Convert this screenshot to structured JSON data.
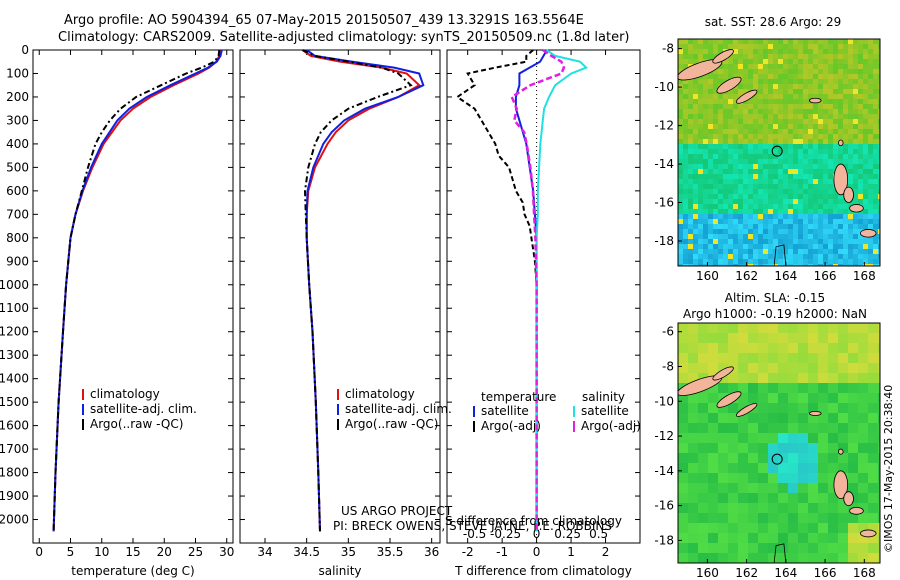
{
  "header": {
    "line1": "Argo profile: AO 5904394_65 07-May-2015 20150507_439 13.3291S 163.5564E",
    "line2": "Climatology: CARS2009. Satellite-adjusted climatology: synTS_20150509.nc (1.8d later)"
  },
  "colors": {
    "climatology": "#e01010",
    "satellite": "#1020e0",
    "argo": "#000000",
    "sal_satellite": "#20e0e0",
    "sal_argo": "#e020e0",
    "land": "#f2b49a"
  },
  "chart_data": [
    {
      "type": "line",
      "xlabel": "temperature (deg C)",
      "ylim": [
        2100,
        0
      ],
      "xlim": [
        -1,
        31
      ],
      "xticks": [
        0,
        5,
        10,
        15,
        20,
        25,
        30
      ],
      "yticks": [
        0,
        100,
        200,
        300,
        400,
        500,
        600,
        700,
        800,
        900,
        1000,
        1100,
        1200,
        1300,
        1400,
        1500,
        1600,
        1700,
        1800,
        1900,
        2000
      ],
      "legend": [
        "climatology",
        "satellite-adj. clim.",
        "Argo(..raw -QC)"
      ],
      "series": [
        {
          "name": "climatology",
          "depth": [
            0,
            25,
            50,
            75,
            100,
            150,
            200,
            250,
            300,
            400,
            500,
            600,
            700,
            800,
            1000,
            1200,
            1500,
            1800,
            2050
          ],
          "values": [
            28.9,
            28.8,
            28.3,
            27.2,
            25.5,
            21.5,
            17.8,
            15.0,
            13.0,
            10.3,
            8.5,
            7.0,
            5.8,
            5.0,
            4.3,
            3.8,
            3.1,
            2.6,
            2.3
          ]
        },
        {
          "name": "satellite-adj. clim.",
          "depth": [
            0,
            25,
            50,
            75,
            100,
            150,
            200,
            250,
            300,
            400,
            500,
            600,
            700,
            800,
            1000,
            1200,
            1500,
            1800,
            2050
          ],
          "values": [
            29.2,
            29.0,
            28.4,
            27.0,
            25.0,
            21.0,
            17.2,
            14.4,
            12.5,
            10.0,
            8.3,
            6.9,
            5.8,
            5.0,
            4.3,
            3.8,
            3.1,
            2.6,
            2.3
          ]
        },
        {
          "name": "Argo(..raw -QC)",
          "depth": [
            0,
            25,
            50,
            75,
            100,
            150,
            200,
            250,
            300,
            350,
            400,
            500,
            600,
            700,
            800,
            1000,
            1200,
            1500,
            1800,
            2050
          ],
          "values": [
            28.8,
            28.7,
            28.0,
            26.0,
            23.5,
            19.5,
            15.5,
            13.0,
            11.3,
            10.0,
            9.0,
            7.8,
            6.8,
            5.8,
            5.0,
            4.3,
            3.8,
            3.1,
            2.6,
            2.3
          ]
        }
      ]
    },
    {
      "type": "line",
      "xlabel": "salinity",
      "ylim": [
        2100,
        0
      ],
      "xlim": [
        33.7,
        36.1
      ],
      "xticks": [
        34,
        34.5,
        35,
        35.5,
        36
      ],
      "xtick_labels": [
        "34",
        "34.5",
        "35",
        "35.5",
        "36"
      ],
      "legend": [
        "climatology",
        "satellite-adj. clim.",
        "Argo(..raw -QC)"
      ],
      "series": [
        {
          "name": "climatology",
          "depth": [
            0,
            25,
            50,
            75,
            100,
            150,
            200,
            250,
            300,
            350,
            400,
            500,
            600,
            700,
            800,
            1000,
            1200,
            1500,
            1800,
            2050
          ],
          "values": [
            34.45,
            34.55,
            34.9,
            35.4,
            35.7,
            35.85,
            35.6,
            35.25,
            35.0,
            34.85,
            34.75,
            34.6,
            34.52,
            34.5,
            34.5,
            34.53,
            34.57,
            34.61,
            34.64,
            34.66
          ]
        },
        {
          "name": "satellite-adj. clim.",
          "depth": [
            0,
            25,
            50,
            75,
            100,
            150,
            200,
            250,
            300,
            350,
            400,
            500,
            600,
            700,
            800,
            1000,
            1200,
            1500,
            1800,
            2050
          ],
          "values": [
            34.5,
            34.6,
            35.05,
            35.55,
            35.85,
            35.9,
            35.6,
            35.2,
            34.95,
            34.8,
            34.7,
            34.58,
            34.51,
            34.5,
            34.5,
            34.53,
            34.57,
            34.61,
            34.64,
            34.66
          ]
        },
        {
          "name": "Argo(..raw -QC)",
          "depth": [
            0,
            25,
            50,
            75,
            100,
            150,
            200,
            250,
            300,
            350,
            400,
            500,
            600,
            700,
            800,
            1000,
            1200,
            1500,
            1800,
            2050
          ],
          "values": [
            34.45,
            34.6,
            35.0,
            35.4,
            35.6,
            35.75,
            35.35,
            35.0,
            34.8,
            34.67,
            34.6,
            34.52,
            34.48,
            34.49,
            34.5,
            34.53,
            34.57,
            34.61,
            34.64,
            34.66
          ]
        }
      ],
      "credit": [
        "US ARGO PROJECT",
        "PI: BRECK OWENS, STEVE JAYNE, P.E. ROBBINS"
      ]
    },
    {
      "type": "line",
      "xlabel": "T difference from climatology",
      "top_xlabel": "S difference from climatology",
      "ylim": [
        2100,
        0
      ],
      "xlim": [
        -2.6,
        3.0
      ],
      "xticks": [
        -2,
        -1,
        0,
        1,
        2
      ],
      "top_xticks": [
        -0.5,
        -0.25,
        0,
        0.25,
        0.5
      ],
      "top_xtick_labels": [
        "-0.5",
        "-0.25",
        "0",
        "0.25",
        "0.5"
      ],
      "legend_temperature": {
        "title": "temperature",
        "items": [
          "satellite",
          "Argo(-adj)"
        ]
      },
      "legend_salinity": {
        "title": "salinity",
        "items": [
          "satellite",
          "Argo(-adj)"
        ]
      },
      "series": [
        {
          "name": "T satellite",
          "depth": [
            0,
            25,
            50,
            75,
            100,
            150,
            200,
            250,
            300,
            400,
            500,
            600,
            700,
            800,
            1000,
            1500,
            2050
          ],
          "values": [
            0.3,
            0.2,
            0.1,
            -0.2,
            -0.5,
            -0.5,
            -0.6,
            -0.6,
            -0.5,
            -0.3,
            -0.2,
            -0.1,
            -0.05,
            0,
            0,
            0,
            0
          ]
        },
        {
          "name": "T Argo(-adj)",
          "depth": [
            0,
            25,
            50,
            75,
            100,
            150,
            200,
            250,
            300,
            350,
            400,
            450,
            500,
            550,
            600,
            650,
            700,
            750,
            800,
            850,
            900,
            1000,
            1200,
            1500,
            2050
          ],
          "values": [
            -0.1,
            -0.3,
            -0.3,
            -1.2,
            -2.0,
            -1.8,
            -2.3,
            -1.8,
            -1.6,
            -1.4,
            -1.2,
            -1.1,
            -0.8,
            -0.7,
            -0.6,
            -0.4,
            -0.35,
            -0.2,
            -0.15,
            -0.1,
            -0.05,
            0,
            0,
            0,
            0
          ]
        },
        {
          "name": "S satellite",
          "depth": [
            0,
            25,
            50,
            75,
            100,
            150,
            200,
            250,
            300,
            350,
            400,
            500,
            600,
            700,
            800,
            1000,
            1500,
            2050
          ],
          "values": [
            0.08,
            0.15,
            0.35,
            0.4,
            0.28,
            0.15,
            0.1,
            0.06,
            0.05,
            0.04,
            0.03,
            0.02,
            0.01,
            0.01,
            0,
            0,
            0,
            0
          ]
        },
        {
          "name": "S Argo(-adj)",
          "depth": [
            0,
            25,
            50,
            75,
            100,
            150,
            200,
            250,
            300,
            350,
            400,
            500,
            600,
            700,
            800,
            1000,
            1500,
            2050
          ],
          "values": [
            0.05,
            0.12,
            0.2,
            0.22,
            0.2,
            -0.05,
            -0.2,
            -0.16,
            -0.18,
            -0.1,
            -0.08,
            -0.05,
            -0.03,
            -0.02,
            -0.01,
            0,
            0,
            0
          ]
        }
      ]
    },
    {
      "type": "heatmap",
      "title": "sat. SST: 28.6 Argo: 29",
      "xticks": [
        160,
        162,
        164,
        166,
        168
      ],
      "yticks": [
        -8,
        -10,
        -12,
        -14,
        -16,
        -18
      ],
      "xlim": [
        158.5,
        168.8
      ],
      "ylim": [
        -19.3,
        -7.5
      ],
      "argo_position": {
        "lon": 163.5564,
        "lat": -13.3291
      }
    },
    {
      "type": "heatmap",
      "title_line1": "Altim. SLA: -0.15",
      "title_line2": "Argo h1000: -0.19 h2000: NaN",
      "xticks": [
        160,
        162,
        164,
        166,
        168
      ],
      "yticks": [
        -6,
        -8,
        -10,
        -12,
        -14,
        -16,
        -18
      ],
      "xlim": [
        158.5,
        168.8
      ],
      "ylim": [
        -19.3,
        -5.5
      ],
      "argo_position": {
        "lon": 163.5564,
        "lat": -13.3291
      }
    }
  ],
  "footer": {
    "copyright": "©IMOS 17-May-2015 20:38:40"
  }
}
